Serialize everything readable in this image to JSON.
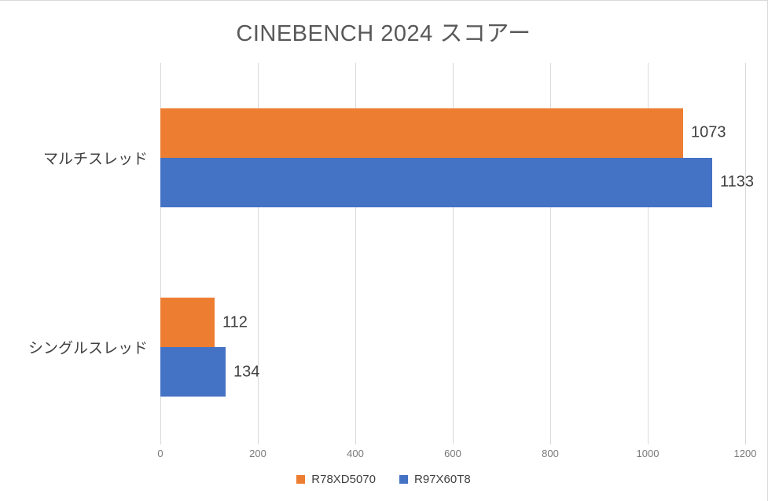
{
  "chart_data": {
    "type": "bar",
    "orientation": "horizontal",
    "title": "CINEBENCH 2024 スコアー",
    "xlabel": "",
    "ylabel": "",
    "categories": [
      "マルチスレッド",
      "シングルスレッド"
    ],
    "series": [
      {
        "name": "R78XD5070",
        "color": "#ED7D31",
        "values": [
          1073,
          112
        ]
      },
      {
        "name": "R97X60T8",
        "color": "#4472C4",
        "values": [
          1133,
          134
        ]
      }
    ],
    "xlim": [
      0,
      1200
    ],
    "x_ticks": [
      0,
      200,
      400,
      600,
      800,
      1000,
      1200
    ],
    "grid": "vertical",
    "data_labels": true,
    "legend_position": "bottom",
    "colors": {
      "gridline": "#d9d9d9",
      "title_text": "#595959",
      "label_text": "#404040",
      "tick_text": "#7a7a7a"
    }
  }
}
